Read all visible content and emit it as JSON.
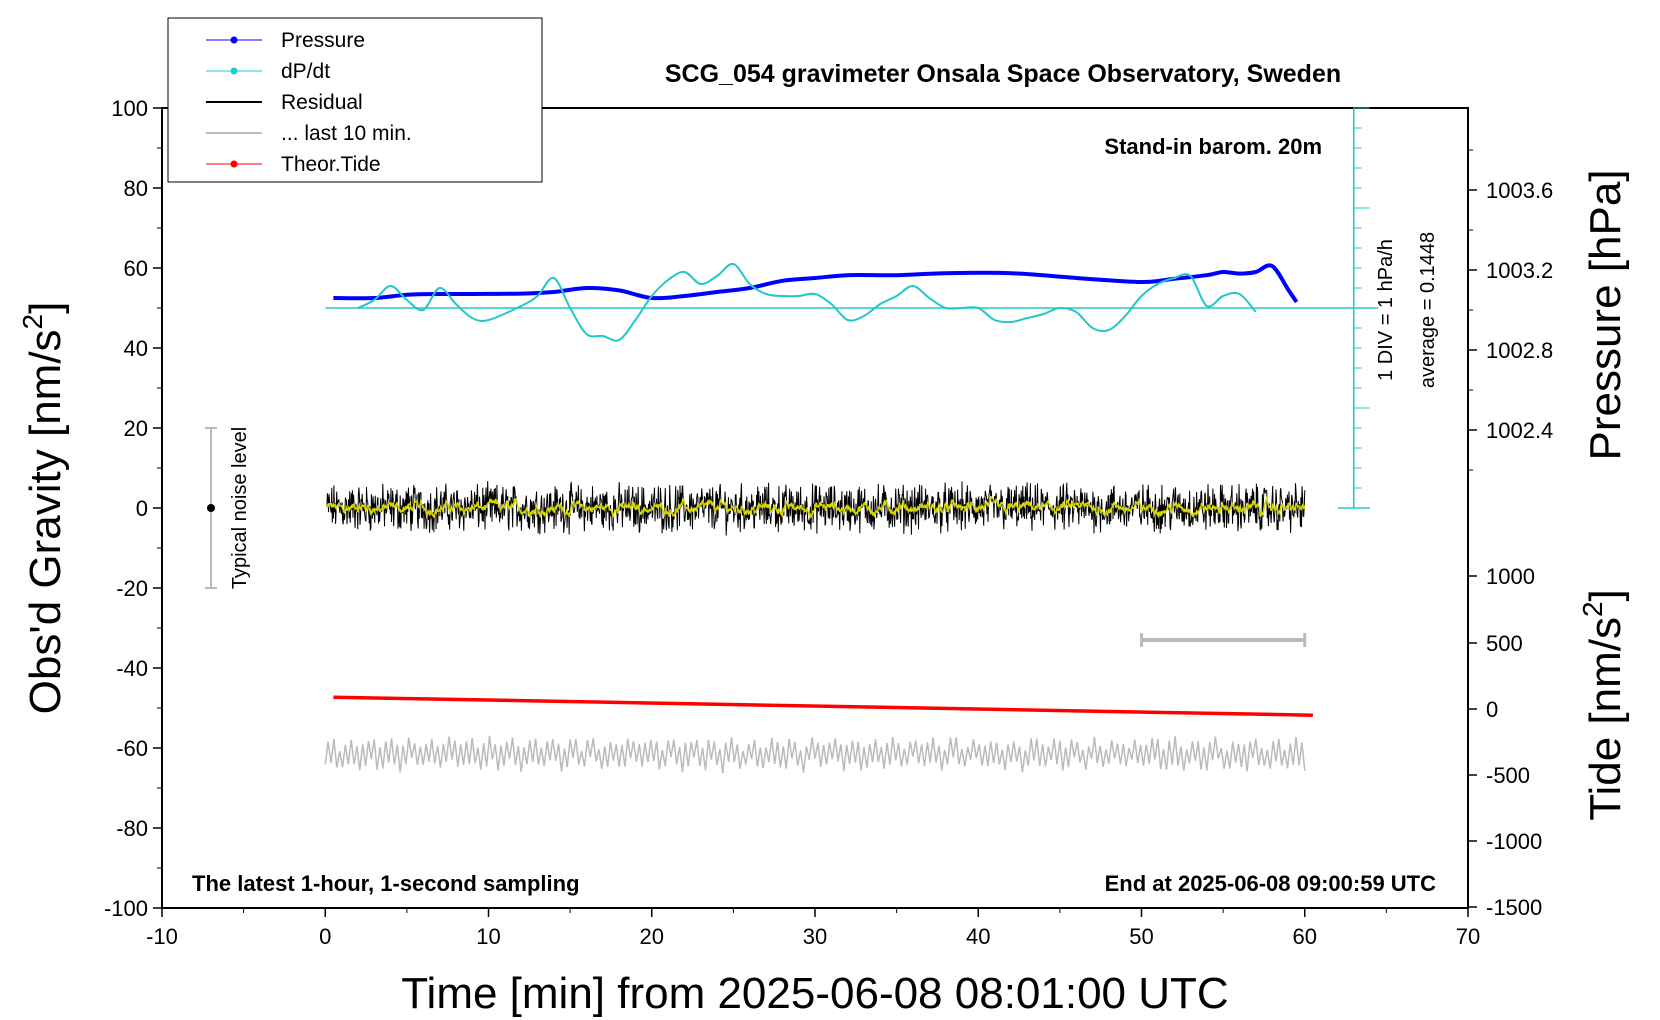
{
  "chart_data": {
    "type": "line",
    "title": "SCG_054 gravimeter Onsala Space Observatory, Sweden",
    "xlabel": "Time [min] from 2025-06-08 08:01:00 UTC",
    "ylabel_left": "Obs'd Gravity [nm/s",
    "ylabel_left_sup": "2",
    "ylabel_left_end": "]",
    "ylabel_right_top": "Pressure [hPa]",
    "ylabel_right_bottom": "Tide [nm/s",
    "ylabel_right_bottom_sup": "2",
    "ylabel_right_bottom_end": "]",
    "xlim": [
      -10,
      70
    ],
    "ylim": [
      -100,
      100
    ],
    "x_ticks": [
      "-10",
      "0",
      "10",
      "20",
      "30",
      "40",
      "50",
      "60",
      "70"
    ],
    "y_ticks": [
      "100",
      "80",
      "60",
      "40",
      "20",
      "0",
      "-20",
      "-40",
      "-60",
      "-80",
      "-100"
    ],
    "pressure_ticks": [
      "1003.6",
      "1003.2",
      "1002.8",
      "1002.4"
    ],
    "tide_ticks": [
      "1000",
      "500",
      "0",
      "-500",
      "-1000",
      "-1500"
    ],
    "annotations": {
      "barometer": "Stand-in barom. 20m",
      "div": "1 DIV = 1 hPa/h",
      "average": "average = 0.1448",
      "noise": "Typical noise level",
      "bottom_left": "The latest 1-hour, 1-second sampling",
      "bottom_right": "End at 2025-06-08 09:00:59 UTC"
    },
    "legend": [
      {
        "name": "Pressure",
        "color": "#0000ff",
        "style": "line-dot"
      },
      {
        "name": "dP/dt",
        "color": "#20c8c8",
        "style": "line-dot"
      },
      {
        "name": "Residual",
        "color": "#000000",
        "style": "line"
      },
      {
        "name": "... last 10 min.",
        "color": "#bbbbbb",
        "style": "line"
      },
      {
        "name": "Theor.Tide",
        "color": "#ff0000",
        "style": "line-dot"
      }
    ],
    "series": [
      {
        "name": "Pressure",
        "color": "#0000ff",
        "x": [
          0.5,
          3,
          5,
          7,
          9,
          12,
          14,
          16,
          18,
          20,
          22,
          24,
          26,
          28,
          30,
          32,
          35,
          38,
          42,
          46,
          50,
          52,
          54,
          55,
          56,
          57,
          58,
          59,
          59.5
        ],
        "y": [
          52.5,
          52.5,
          53.3,
          53.5,
          53.5,
          53.6,
          54,
          55,
          54.4,
          52.5,
          53,
          54,
          55,
          56.8,
          57.5,
          58.2,
          58.2,
          58.7,
          58.7,
          57.5,
          56.5,
          57.3,
          58.2,
          59,
          58.6,
          59,
          60.5,
          54.5,
          51.5
        ]
      },
      {
        "name": "dP/dt",
        "color": "#20c8c8",
        "x": [
          2,
          3,
          4,
          5,
          6,
          7,
          8,
          9,
          10,
          12,
          13,
          14,
          15,
          16,
          17,
          18,
          19,
          20,
          21,
          22,
          23,
          24,
          25,
          26,
          27,
          28,
          29,
          30,
          31,
          32,
          33,
          34,
          35,
          36,
          37,
          38,
          39,
          40,
          41,
          42,
          43,
          44,
          45,
          46,
          47,
          48,
          49,
          50,
          51,
          52,
          53,
          54,
          55,
          56,
          57
        ],
        "y": [
          50,
          52,
          55.5,
          52,
          49.5,
          55,
          51,
          47.5,
          47,
          50.5,
          53,
          57.5,
          50,
          43.5,
          43,
          42,
          47,
          53,
          57,
          59,
          56,
          58,
          61,
          56,
          53.5,
          53,
          53,
          53.5,
          51,
          47,
          48,
          51,
          53,
          55.5,
          52.5,
          50,
          50,
          50,
          47,
          46.5,
          47.5,
          48.5,
          50,
          49,
          45,
          44.5,
          48,
          53,
          56,
          57.5,
          58,
          50.5,
          53,
          53.5,
          49
        ]
      },
      {
        "name": "Residual",
        "color": "#000000",
        "x": [
          0.1,
          60
        ],
        "y": [
          0,
          0
        ]
      },
      {
        "name": "Theor.Tide",
        "color": "#ff0000",
        "x": [
          0.5,
          60.5
        ],
        "y": [
          -47.3,
          -51.8
        ]
      },
      {
        "name": "... last 10 min.",
        "color": "#bbbbbb",
        "x": [
          0,
          60
        ],
        "y": [
          -61.5,
          -61.5
        ]
      }
    ],
    "dpdt_baseline": 50,
    "noise_bar": {
      "x": -7,
      "ymin": -20,
      "ymax": 20
    },
    "ten_min_bar": {
      "xmin": 50,
      "xmax": 60,
      "y": -33
    }
  }
}
